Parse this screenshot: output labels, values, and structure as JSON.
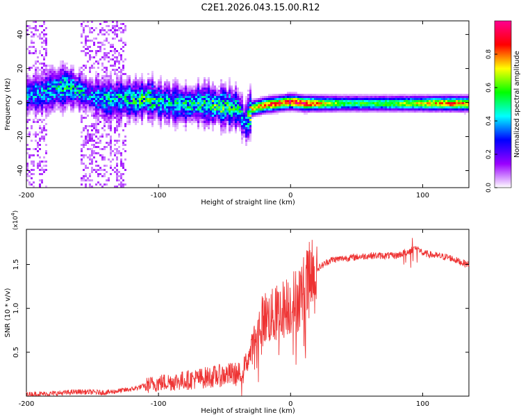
{
  "title": "C2E1.2026.043.15.00.R12",
  "chart_data": [
    {
      "type": "heatmap",
      "name": "spectrogram",
      "xlabel": "Height of straight line (km)",
      "ylabel": "Frequency (Hz)",
      "xlim": [
        -200,
        135
      ],
      "ylim": [
        -50,
        48
      ],
      "xticks": [
        -200,
        -100,
        0,
        100
      ],
      "yticks": [
        -40,
        -20,
        0,
        20,
        40
      ],
      "colorbar": {
        "label": "Normalized spectral amplitude",
        "range": [
          0,
          1
        ],
        "ticks": [
          "0.0",
          "0.2",
          "0.4",
          "0.6",
          "0.8"
        ],
        "tick_values": [
          0.0,
          0.2,
          0.4,
          0.6,
          0.8
        ],
        "colors": [
          "#ffffff",
          "#9a00ff",
          "#0000ff",
          "#00ffff",
          "#00ff00",
          "#ffff00",
          "#ff0000",
          "#ff0090"
        ]
      },
      "ridge": {
        "heights_km": [
          -200,
          -190,
          -180,
          -170,
          -160,
          -150,
          -140,
          -130,
          -120,
          -110,
          -100,
          -90,
          -80,
          -70,
          -60,
          -50,
          -40,
          -35,
          -30,
          -20,
          -10,
          0,
          10,
          20,
          40,
          60,
          80,
          100,
          120,
          135
        ],
        "frequency_hz": [
          5,
          6,
          8,
          10,
          7,
          4,
          2,
          3,
          2,
          3,
          1,
          0,
          -1,
          0,
          -1,
          -2,
          -3,
          -12,
          -3,
          -1,
          0,
          1,
          0,
          0,
          0,
          0,
          0,
          0,
          0,
          0
        ],
        "peak_amplitude": [
          0.35,
          0.35,
          0.4,
          0.45,
          0.4,
          0.35,
          0.4,
          0.4,
          0.45,
          0.5,
          0.45,
          0.4,
          0.45,
          0.45,
          0.5,
          0.5,
          0.45,
          0.3,
          0.7,
          0.8,
          0.85,
          0.9,
          0.9,
          0.75,
          0.55,
          0.55,
          0.6,
          0.7,
          0.8,
          0.8
        ]
      }
    },
    {
      "type": "line",
      "name": "snr",
      "xlabel": "Height of straight line (km)",
      "ylabel": "SNR (10 * v/v)",
      "y_multiplier": "(x10",
      "y_multiplier_exp": "4",
      "y_multiplier_close": ")",
      "xlim": [
        -200,
        135
      ],
      "ylim": [
        0,
        1.9
      ],
      "xticks": [
        -200,
        -100,
        0,
        100
      ],
      "yticks": [
        0.5,
        1.0,
        1.5
      ],
      "ytick_labels": [
        "0.5",
        "1.0",
        "1.5"
      ],
      "color": "#ee3333",
      "series": [
        {
          "name": "SNR",
          "x": [
            -200,
            -180,
            -160,
            -140,
            -120,
            -110,
            -100,
            -80,
            -60,
            -45,
            -38,
            -30,
            -25,
            -20,
            -15,
            -10,
            -5,
            0,
            5,
            10,
            20,
            30,
            40,
            60,
            80,
            90,
            95,
            100,
            110,
            120,
            130,
            135
          ],
          "y": [
            0.02,
            0.03,
            0.05,
            0.04,
            0.08,
            0.12,
            0.15,
            0.18,
            0.22,
            0.25,
            0.25,
            0.5,
            0.75,
            0.9,
            0.9,
            0.95,
            1.0,
            1.05,
            1.1,
            1.2,
            1.45,
            1.55,
            1.57,
            1.6,
            1.6,
            1.65,
            1.7,
            1.63,
            1.6,
            1.58,
            1.52,
            1.5
          ]
        }
      ]
    }
  ]
}
